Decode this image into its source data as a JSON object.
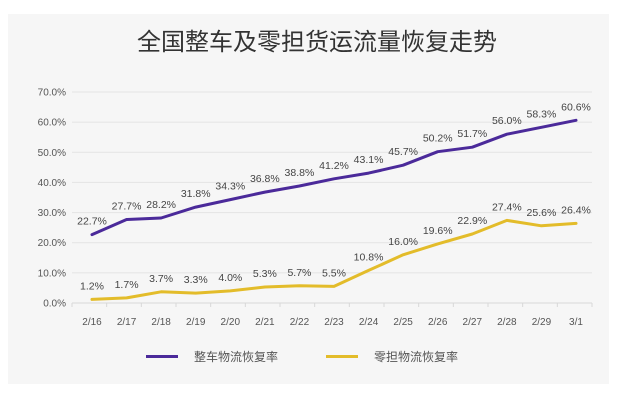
{
  "chart_data": {
    "type": "line",
    "title": "全国整车及零担货运流量恢复走势",
    "xlabel": "",
    "ylabel": "",
    "categories": [
      "2/16",
      "2/17",
      "2/18",
      "2/19",
      "2/20",
      "2/21",
      "2/22",
      "2/23",
      "2/24",
      "2/25",
      "2/26",
      "2/27",
      "2/28",
      "2/29",
      "3/1"
    ],
    "ylim": [
      0,
      70
    ],
    "yticks": [
      "0.0%",
      "10.0%",
      "20.0%",
      "30.0%",
      "40.0%",
      "50.0%",
      "60.0%",
      "70.0%"
    ],
    "grid": true,
    "legend_position": "bottom",
    "series": [
      {
        "name": "整车物流恢复率",
        "color": "#4b2a9a",
        "values": [
          22.7,
          27.7,
          28.2,
          31.8,
          34.3,
          36.8,
          38.8,
          41.2,
          43.1,
          45.7,
          50.2,
          51.7,
          56.0,
          58.3,
          60.6
        ],
        "labels": [
          "22.7%",
          "27.7%",
          "28.2%",
          "31.8%",
          "34.3%",
          "36.8%",
          "38.8%",
          "41.2%",
          "43.1%",
          "45.7%",
          "50.2%",
          "51.7%",
          "56.0%",
          "58.3%",
          "60.6%"
        ]
      },
      {
        "name": "零担物流恢复率",
        "color": "#e3bc2a",
        "values": [
          1.2,
          1.7,
          3.7,
          3.3,
          4.0,
          5.3,
          5.7,
          5.5,
          10.8,
          16.0,
          19.6,
          22.9,
          27.4,
          25.6,
          26.4
        ],
        "labels": [
          "1.2%",
          "1.7%",
          "3.7%",
          "3.3%",
          "4.0%",
          "5.3%",
          "5.7%",
          "5.5%",
          "10.8%",
          "16.0%",
          "19.6%",
          "22.9%",
          "27.4%",
          "25.6%",
          "26.4%"
        ]
      }
    ]
  }
}
